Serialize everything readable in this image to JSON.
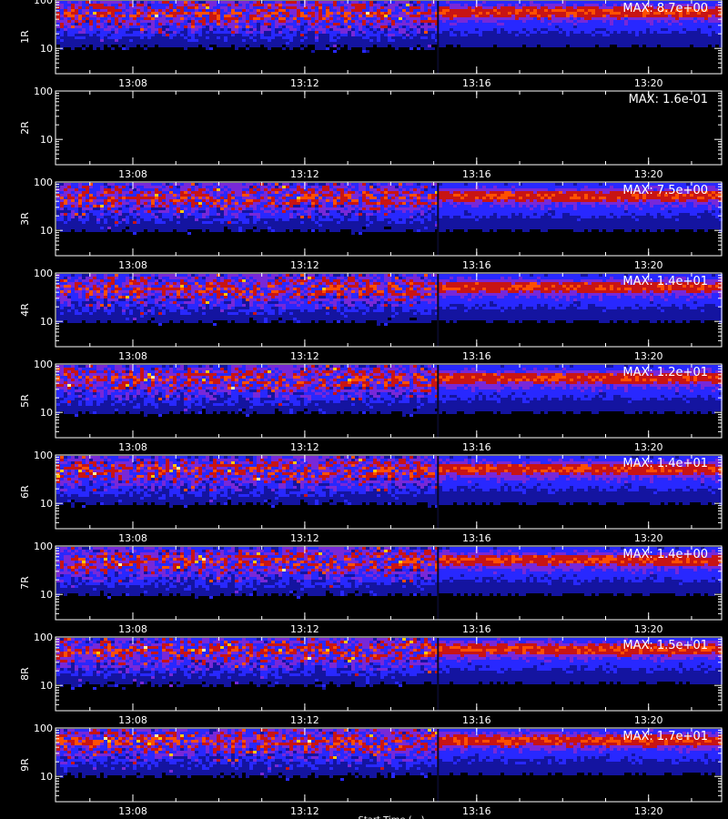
{
  "chart_data": {
    "type": "heatmap",
    "x_axis": {
      "tick_labels": [
        "13:08",
        "13:12",
        "13:16",
        "13:20"
      ],
      "tick_values_min": [
        788,
        792,
        796,
        800
      ],
      "range_min": [
        786.2,
        801.7
      ],
      "gap_at_min": 795.1
    },
    "y_axis": {
      "scale": "log",
      "tick_labels": [
        "100",
        "10"
      ],
      "tick_values": [
        100,
        10
      ],
      "range": [
        3,
        100
      ]
    },
    "colormap": [
      "#000000",
      "#1414a0",
      "#2828ff",
      "#7828d8",
      "#c81414",
      "#ff5000",
      "#ffc800",
      "#ffffa0"
    ],
    "grid": false,
    "footer_text": "Start Time (…)",
    "panels": [
      {
        "ylabel": "1R",
        "max_text": "MAX: 8.7e+00",
        "max_value": 8.7,
        "band_level": 60,
        "empty": false
      },
      {
        "ylabel": "2R",
        "max_text": "MAX: 1.6e-01",
        "max_value": 0.16,
        "band_level": 60,
        "empty": true
      },
      {
        "ylabel": "3R",
        "max_text": "MAX: 7.5e+00",
        "max_value": 7.5,
        "band_level": 55,
        "empty": false
      },
      {
        "ylabel": "4R",
        "max_text": "MAX: 1.4e+01",
        "max_value": 14,
        "band_level": 55,
        "empty": false
      },
      {
        "ylabel": "5R",
        "max_text": "MAX: 1.2e+01",
        "max_value": 12,
        "band_level": 55,
        "empty": false
      },
      {
        "ylabel": "6R",
        "max_text": "MAX: 1.4e+01",
        "max_value": 14,
        "band_level": 55,
        "empty": false
      },
      {
        "ylabel": "7R",
        "max_text": "MAX: 1.4e+00",
        "max_value": 1.4,
        "band_level": 55,
        "empty": false
      },
      {
        "ylabel": "8R",
        "max_text": "MAX: 1.5e+01",
        "max_value": 15,
        "band_level": 60,
        "empty": false
      },
      {
        "ylabel": "9R",
        "max_text": "MAX: 1.7e+01",
        "max_value": 17,
        "band_level": 60,
        "empty": false
      }
    ]
  }
}
